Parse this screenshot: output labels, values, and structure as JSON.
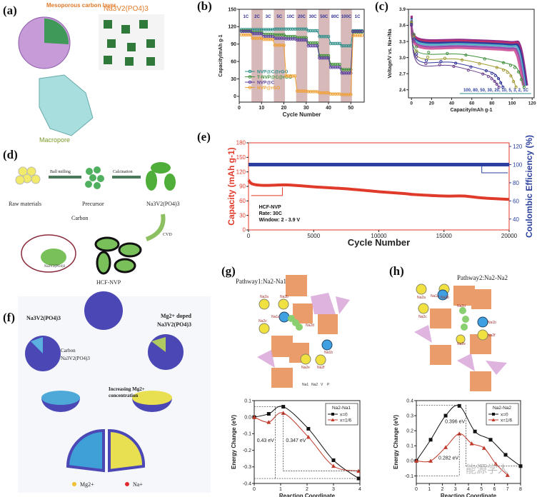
{
  "panels": {
    "a": {
      "label": "(a)",
      "carbon_layer": "Mesoporous carbon layer",
      "formula": "Na3V2(PO4)3",
      "macropore": "Macropore"
    },
    "d": {
      "label": "(d)",
      "raw": "Raw materials",
      "ball_milling": "Ball milling",
      "precursor": "Precursor",
      "calcination": "Calcination",
      "product": "Na3V2(PO4)3",
      "cvd": "CVD",
      "carbon": "Carbon",
      "inset_formula": "Na3V2(PO4)3",
      "result": "HCF-NVP"
    },
    "f": {
      "label": "(f)",
      "left_title": "Na3V2(PO4)3",
      "right_title_1": "Mg2+ doped",
      "right_title_2": "Na3V2(PO4)3",
      "carbon": "Carbon",
      "core": "Na3V2(PO4)3",
      "gradient": "Increasing Mg2+",
      "gradient_2": "concentration",
      "legend_mg": "Mg2+",
      "legend_na": "Na+"
    },
    "g": {
      "label": "(g)",
      "title": "Pathway1:Na2-Na1",
      "sites": [
        "Na2a",
        "Na2b",
        "Na1a",
        "Na2c",
        "Na2d",
        "Na1b",
        "Na2e",
        "Na2f"
      ],
      "legend": [
        "Na1",
        "Na2",
        "V",
        "P"
      ]
    },
    "h": {
      "label": "(h)",
      "title": "Pathway2:Na2-Na2",
      "sites": [
        "Na2a",
        "Na2b",
        "Na1a",
        "Na2c",
        "Na2d",
        "Na1b",
        "Na2f",
        "Na2e"
      ]
    },
    "b": {
      "label": "(b)"
    },
    "c": {
      "label": "(c)"
    },
    "e": {
      "label": "(e)"
    }
  },
  "watermark": "能源学人",
  "colors": {
    "teal": "#2f8f8a",
    "green": "#3f8f3a",
    "purple": "#5b3f9e",
    "orange": "#f0a032",
    "band": "#c9a2a2",
    "red": "#e03a2a",
    "blue": "#2a3f9e",
    "black": "#111111",
    "redTri": "#c0392b"
  },
  "chart_data": [
    {
      "id": "b",
      "type": "line",
      "xlabel": "Cycle Number",
      "ylabel": "Capacity/mAh g-1",
      "xlim": [
        0,
        56
      ],
      "ylim": [
        -10,
        150
      ],
      "xticks": [
        0,
        10,
        20,
        30,
        40,
        50
      ],
      "yticks": [
        0,
        30,
        60,
        90,
        120,
        150
      ],
      "rates": [
        "1C",
        "2C",
        "3C",
        "5C",
        "10C",
        "20C",
        "30C",
        "50C",
        "80C",
        "100C",
        "1C"
      ],
      "cycles_per_rate": 5,
      "shaded_rates": [
        1,
        3,
        5,
        7,
        9
      ],
      "legend_position": "bottom-left",
      "series": [
        {
          "name": "NVP@C@rGO",
          "color": "#2f8f8a",
          "values": [
            115,
            115,
            115,
            116,
            116,
            116,
            113,
            103,
            91,
            87,
            113
          ]
        },
        {
          "name": "T-NVP@C@rGO",
          "color": "#3f8f3a",
          "values": [
            113,
            110,
            107,
            106,
            103,
            101,
            92,
            70,
            55,
            46,
            111
          ]
        },
        {
          "name": "NVP@C",
          "color": "#5b3f9e",
          "values": [
            112,
            108,
            103,
            100,
            99,
            97,
            87,
            66,
            50,
            40,
            112
          ]
        },
        {
          "name": "NVP@rGO",
          "color": "#f0a032",
          "values": [
            106,
            100,
            98,
            88,
            35,
            9,
            8,
            6,
            4,
            3,
            105
          ]
        }
      ]
    },
    {
      "id": "c",
      "type": "line",
      "xlabel": "Capacity/mAh g-1",
      "ylabel": "Voltage/V vs. Na+/Na",
      "xlim": [
        -3,
        122
      ],
      "ylim": [
        2.25,
        3.9
      ],
      "xticks": [
        0,
        20,
        40,
        60,
        80,
        100,
        120
      ],
      "yticks": [
        2.4,
        2.7,
        3.0,
        3.3,
        3.6,
        3.9
      ],
      "annotation": "100, 80, 50, 30, 20, 10, 5, 3, 2, 1C",
      "series": [
        {
          "color": "#8e2c8a",
          "plateau": 3.34,
          "capacity": 115
        },
        {
          "color": "#c0306a",
          "plateau": 3.32,
          "capacity": 114
        },
        {
          "color": "#2a3f9e",
          "plateau": 3.29,
          "capacity": 114
        },
        {
          "color": "#5fb0c8",
          "plateau": 3.26,
          "capacity": 113
        },
        {
          "color": "#9a4fb0",
          "plateau": 3.22,
          "capacity": 112
        },
        {
          "color": "#d05fa0",
          "plateau": 3.19,
          "capacity": 111
        },
        {
          "color": "#3f8f3a",
          "plateau": 3.09,
          "capacity": 112
        },
        {
          "color": "#a09a30",
          "plateau": 3.0,
          "capacity": 104
        },
        {
          "color": "#333399",
          "plateau": 2.94,
          "capacity": 91
        },
        {
          "color": "#6a3f8e",
          "plateau": 2.88,
          "capacity": 87
        }
      ]
    },
    {
      "id": "e",
      "type": "line",
      "xlabel": "Cycle Number",
      "ylabel": "Capacity (mAh g-1)",
      "ylabel_right": "Coulombic Efficiency (%)",
      "xlim": [
        0,
        20000
      ],
      "ylim": [
        0,
        180
      ],
      "ylim_right": [
        28,
        124
      ],
      "xticks": [
        0,
        5000,
        10000,
        15000,
        20000
      ],
      "yticks": [
        0,
        30,
        60,
        90,
        120,
        150,
        180
      ],
      "yticks_right": [
        40,
        60,
        80,
        100,
        120
      ],
      "annotation": [
        "HCF-NVP",
        "Rate: 30C",
        "Window: 2 - 3.9 V"
      ],
      "series": [
        {
          "axis": "left",
          "color": "#e03a2a",
          "points": [
            [
              0,
              103
            ],
            [
              300,
              95
            ],
            [
              1200,
              92
            ],
            [
              3000,
              93
            ],
            [
              5000,
              89
            ],
            [
              7500,
              85
            ],
            [
              10000,
              79
            ],
            [
              12000,
              75
            ],
            [
              12800,
              73
            ],
            [
              15000,
              70
            ],
            [
              16500,
              70
            ],
            [
              18000,
              66
            ],
            [
              20000,
              63
            ]
          ]
        },
        {
          "axis": "right",
          "color": "#2a3f9e",
          "points": [
            [
              0,
              100
            ],
            [
              20000,
              100
            ]
          ]
        }
      ]
    },
    {
      "id": "g",
      "type": "line",
      "xlabel": "Reaction Coordinate",
      "ylabel": "Energy Change (eV)",
      "xlim": [
        0,
        4
      ],
      "ylim": [
        -0.4,
        0.1
      ],
      "xticks": [
        0,
        1,
        2,
        3,
        4
      ],
      "yticks": [
        -0.4,
        -0.3,
        -0.2,
        -0.1,
        0.0,
        0.1
      ],
      "legend_title": "Na2-Na1",
      "legend_position": "top-right",
      "annotations": [
        "0.43 eV",
        "0.347 eV"
      ],
      "series": [
        {
          "name": "x=0",
          "color": "#111111",
          "marker": "square",
          "points": [
            [
              0,
              0
            ],
            [
              0.55,
              0.02
            ],
            [
              1.1,
              0.063
            ],
            [
              2.05,
              -0.07
            ],
            [
              3,
              -0.26
            ],
            [
              3.95,
              -0.37
            ]
          ]
        },
        {
          "name": "x=1/6",
          "color": "#c0392b",
          "marker": "triangle",
          "points": [
            [
              0,
              0
            ],
            [
              0.55,
              -0.03
            ],
            [
              1.1,
              0.025
            ],
            [
              2.05,
              -0.12
            ],
            [
              3,
              -0.295
            ],
            [
              3.95,
              -0.325
            ]
          ]
        }
      ]
    },
    {
      "id": "h",
      "type": "line",
      "xlabel": "Reaction Coordinate",
      "ylabel": "Energy Change (eV)",
      "xlim": [
        0,
        8
      ],
      "ylim": [
        -0.15,
        0.4
      ],
      "xticks": [
        0,
        1,
        2,
        3,
        4,
        5,
        6,
        7,
        8
      ],
      "yticks": [
        -0.1,
        0.0,
        0.1,
        0.2,
        0.3,
        0.4
      ],
      "legend_title": "Na2-Na2",
      "legend_position": "top-right",
      "annotations": [
        "0.396 eV",
        "0.282 eV"
      ],
      "series": [
        {
          "name": "x=0",
          "color": "#111111",
          "marker": "square",
          "points": [
            [
              0,
              0
            ],
            [
              1.1,
              0.14
            ],
            [
              2.25,
              0.3
            ],
            [
              3.3,
              0.365
            ],
            [
              4.5,
              0.195
            ],
            [
              5.7,
              0.14
            ],
            [
              6.85,
              0.04
            ],
            [
              8,
              -0.035
            ]
          ]
        },
        {
          "name": "x=1/6",
          "color": "#c0392b",
          "marker": "triangle",
          "points": [
            [
              0,
              0
            ],
            [
              1.1,
              0
            ],
            [
              2.25,
              0.09
            ],
            [
              3.3,
              0.18
            ],
            [
              4.25,
              0.115
            ],
            [
              5.2,
              0.085
            ],
            [
              6.1,
              -0.02
            ],
            [
              7,
              -0.095
            ]
          ]
        }
      ]
    }
  ]
}
